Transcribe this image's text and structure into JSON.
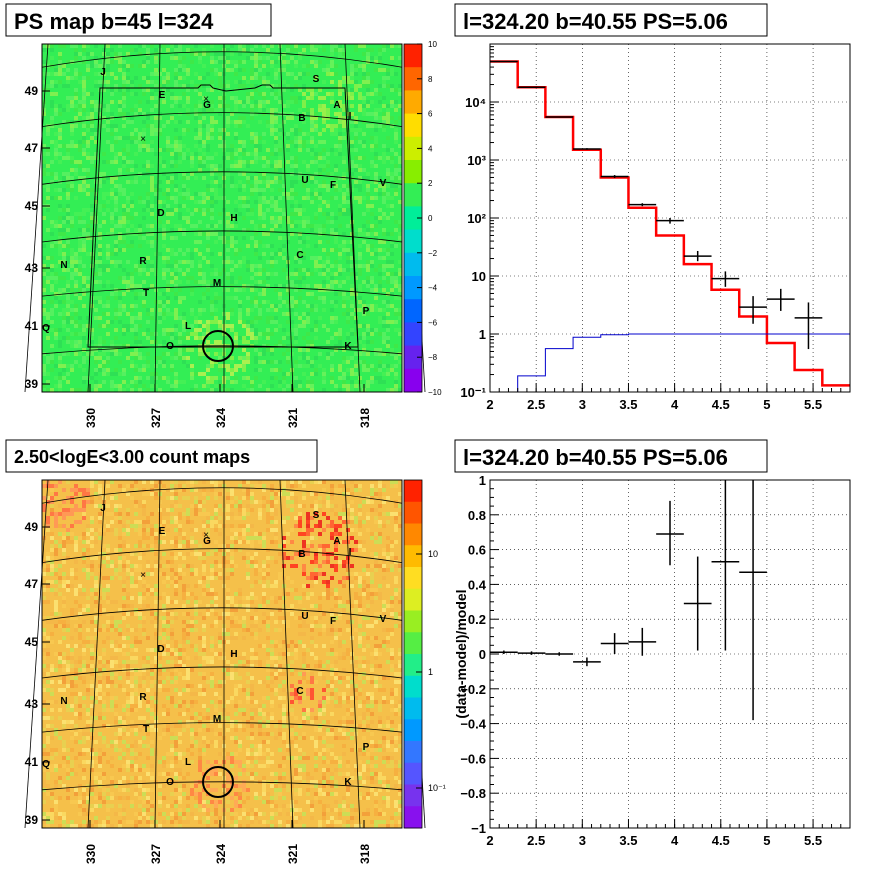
{
  "colors": {
    "map_bg": "#33ee55",
    "count_bg": "#f5c04a",
    "model_line": "#ff0000",
    "background_line": "#0000cc",
    "data_marks": "#000000"
  },
  "chart_data": [
    {
      "id": "ps-map",
      "type": "heatmap",
      "title": "PS map b=45 l=324",
      "x_ticks": [
        "330",
        "327",
        "324",
        "321",
        "318"
      ],
      "y_ticks": [
        "39",
        "41",
        "43",
        "45",
        "47",
        "49"
      ],
      "colorbar": {
        "range": [
          -10,
          10
        ],
        "ticks": [
          "10",
          "8",
          "6",
          "4",
          "2",
          "0",
          "−2",
          "−4",
          "−6",
          "−8",
          "−10"
        ]
      },
      "region_labels": [
        "J",
        "S",
        "E",
        "G",
        "A",
        "I",
        "B",
        "U",
        "F",
        "V",
        "D",
        "H",
        "N",
        "R",
        "C",
        "M",
        "T",
        "P",
        "L",
        "Q",
        "O",
        "K"
      ],
      "source_marker": {
        "l": 324.2,
        "b": 40.55
      }
    },
    {
      "id": "spectrum",
      "type": "line",
      "title": "l=324.20 b=40.55 PS=5.06",
      "yscale": "log",
      "xlim": [
        2,
        5.9
      ],
      "ylim": [
        0.1,
        100000
      ],
      "x_ticks": [
        "2",
        "2.5",
        "3",
        "3.5",
        "4",
        "4.5",
        "5",
        "5.5"
      ],
      "y_ticks": [
        "10⁻¹",
        "1",
        "10",
        "10²",
        "10³",
        "10⁴"
      ],
      "series": [
        {
          "values": [
            {
              "x0": 2.0,
              "x1": 2.3,
              "y": 50000
            },
            {
              "x0": 2.3,
              "x1": 2.6,
              "y": 18000
            },
            {
              "x0": 2.6,
              "x1": 2.9,
              "y": 5500
            },
            {
              "x0": 2.9,
              "x1": 3.2,
              "y": 1500
            },
            {
              "x0": 3.2,
              "x1": 3.5,
              "y": 500
            },
            {
              "x0": 3.5,
              "x1": 3.8,
              "y": 150
            },
            {
              "x0": 3.8,
              "x1": 4.1,
              "y": 50
            },
            {
              "x0": 4.1,
              "x1": 4.4,
              "y": 16
            },
            {
              "x0": 4.4,
              "x1": 4.7,
              "y": 5.8
            },
            {
              "x0": 4.7,
              "x1": 5.0,
              "y": 2
            },
            {
              "x0": 5.0,
              "x1": 5.3,
              "y": 0.7
            },
            {
              "x0": 5.3,
              "x1": 5.6,
              "y": 0.24
            },
            {
              "x0": 5.6,
              "x1": 5.9,
              "y": 0.13
            }
          ]
        },
        {
          "values": [
            {
              "x0": 2.3,
              "x1": 2.6,
              "y": 0.19
            },
            {
              "x0": 2.6,
              "x1": 2.9,
              "y": 0.56
            },
            {
              "x0": 2.9,
              "x1": 3.2,
              "y": 0.88
            },
            {
              "x0": 3.2,
              "x1": 3.5,
              "y": 0.97
            },
            {
              "x0": 3.5,
              "x1": 5.9,
              "y": 1.0
            }
          ]
        }
      ],
      "points": [
        {
          "x": 2.15,
          "xerr": 0.15,
          "y": 50000,
          "ylo": 49500,
          "yhi": 50500
        },
        {
          "x": 2.45,
          "xerr": 0.15,
          "y": 18000,
          "ylo": 17800,
          "yhi": 18200
        },
        {
          "x": 2.75,
          "xerr": 0.15,
          "y": 5500,
          "ylo": 5400,
          "yhi": 5600
        },
        {
          "x": 3.05,
          "xerr": 0.15,
          "y": 1550,
          "ylo": 1500,
          "yhi": 1600
        },
        {
          "x": 3.35,
          "xerr": 0.15,
          "y": 520,
          "ylo": 490,
          "yhi": 550
        },
        {
          "x": 3.65,
          "xerr": 0.15,
          "y": 170,
          "ylo": 160,
          "yhi": 180
        },
        {
          "x": 3.95,
          "xerr": 0.15,
          "y": 90,
          "ylo": 80,
          "yhi": 100
        },
        {
          "x": 4.25,
          "xerr": 0.15,
          "y": 22,
          "ylo": 18,
          "yhi": 27
        },
        {
          "x": 4.55,
          "xerr": 0.15,
          "y": 9,
          "ylo": 6.5,
          "yhi": 12
        },
        {
          "x": 4.85,
          "xerr": 0.15,
          "y": 2.9,
          "ylo": 1.5,
          "yhi": 4.5
        },
        {
          "x": 5.15,
          "xerr": 0.15,
          "y": 4,
          "ylo": 2.5,
          "yhi": 6
        },
        {
          "x": 5.45,
          "xerr": 0.15,
          "y": 1.9,
          "ylo": 0.55,
          "yhi": 3.5
        }
      ]
    },
    {
      "id": "count-map",
      "type": "heatmap",
      "title": "2.50<logE<3.00 count maps",
      "x_ticks": [
        "330",
        "327",
        "324",
        "321",
        "318"
      ],
      "y_ticks": [
        "39",
        "41",
        "43",
        "45",
        "47",
        "49"
      ],
      "colorbar": {
        "scale": "log",
        "ticks": [
          "10",
          "1",
          "10⁻¹"
        ]
      },
      "region_labels": [
        "J",
        "S",
        "E",
        "G",
        "A",
        "I",
        "B",
        "U",
        "F",
        "V",
        "D",
        "H",
        "N",
        "R",
        "C",
        "M",
        "T",
        "P",
        "L",
        "Q",
        "O",
        "K"
      ],
      "source_marker": {
        "l": 324.2,
        "b": 40.55
      }
    },
    {
      "id": "residuals",
      "type": "scatter",
      "title": "l=324.20 b=40.55 PS=5.06",
      "ylabel": "(data-model)/model",
      "xlim": [
        2,
        5.9
      ],
      "ylim": [
        -1,
        1
      ],
      "x_ticks": [
        "2",
        "2.5",
        "3",
        "3.5",
        "4",
        "4.5",
        "5",
        "5.5"
      ],
      "y_ticks": [
        "1",
        "0.8",
        "0.6",
        "0.4",
        "0.2",
        "0",
        "−0.2",
        "−0.4",
        "−0.6",
        "−0.8",
        "−1"
      ],
      "points": [
        {
          "x": 2.15,
          "xerr": 0.15,
          "y": 0.01,
          "ylo": 0.0,
          "yhi": 0.02
        },
        {
          "x": 2.45,
          "xerr": 0.15,
          "y": 0.005,
          "ylo": -0.005,
          "yhi": 0.015
        },
        {
          "x": 2.75,
          "xerr": 0.15,
          "y": 0.0,
          "ylo": -0.01,
          "yhi": 0.01
        },
        {
          "x": 3.05,
          "xerr": 0.15,
          "y": -0.045,
          "ylo": -0.07,
          "yhi": -0.02
        },
        {
          "x": 3.35,
          "xerr": 0.15,
          "y": 0.06,
          "ylo": 0.0,
          "yhi": 0.12
        },
        {
          "x": 3.65,
          "xerr": 0.15,
          "y": 0.07,
          "ylo": -0.01,
          "yhi": 0.15
        },
        {
          "x": 3.95,
          "xerr": 0.15,
          "y": 0.69,
          "ylo": 0.51,
          "yhi": 0.88
        },
        {
          "x": 4.25,
          "xerr": 0.15,
          "y": 0.29,
          "ylo": 0.02,
          "yhi": 0.56
        },
        {
          "x": 4.55,
          "xerr": 0.15,
          "y": 0.53,
          "ylo": 0.02,
          "yhi": 1.0
        },
        {
          "x": 4.85,
          "xerr": 0.15,
          "y": 0.47,
          "ylo": -0.38,
          "yhi": 1.0
        }
      ]
    }
  ]
}
